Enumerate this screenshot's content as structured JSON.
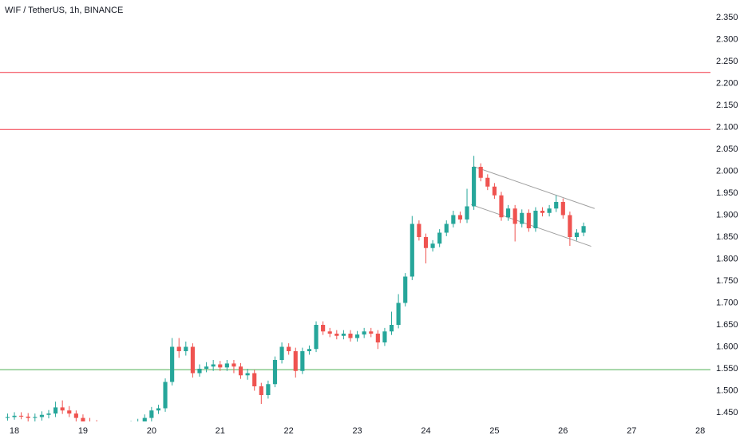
{
  "chart_data": {
    "type": "candlestick",
    "title": "WIF / TetherUS, 1h, BINANCE",
    "up_color": "#26a69a",
    "down_color": "#ef5350",
    "xlim": [
      17.79,
      28.15
    ],
    "xticks": [
      18,
      19,
      20,
      21,
      22,
      23,
      24,
      25,
      26,
      27,
      28
    ],
    "ylim": [
      1.43,
      2.39
    ],
    "yticks": [
      {
        "value": 2.35,
        "label": "2.350"
      },
      {
        "value": 2.3,
        "label": "2.300"
      },
      {
        "value": 2.25,
        "label": "2.250"
      },
      {
        "value": 2.2,
        "label": "2.200"
      },
      {
        "value": 2.15,
        "label": "2.150"
      },
      {
        "value": 2.1,
        "label": "2.100"
      },
      {
        "value": 2.05,
        "label": "2.050"
      },
      {
        "value": 2.0,
        "label": "2.000"
      },
      {
        "value": 1.95,
        "label": "1.950"
      },
      {
        "value": 1.9,
        "label": "1.900"
      },
      {
        "value": 1.85,
        "label": "1.850"
      },
      {
        "value": 1.8,
        "label": "1.800"
      },
      {
        "value": 1.75,
        "label": "1.750"
      },
      {
        "value": 1.7,
        "label": "1.700"
      },
      {
        "value": 1.65,
        "label": "1.650"
      },
      {
        "value": 1.6,
        "label": "1.600"
      },
      {
        "value": 1.55,
        "label": "1.550"
      },
      {
        "value": 1.5,
        "label": "1.500"
      },
      {
        "value": 1.45,
        "label": "1.450"
      }
    ],
    "x": [
      17.9,
      18.0,
      18.1,
      18.2,
      18.3,
      18.4,
      18.5,
      18.6,
      18.7,
      18.8,
      18.9,
      19.0,
      19.1,
      19.2,
      19.3,
      19.4,
      19.5,
      19.6,
      19.7,
      19.8,
      19.9,
      20.0,
      20.1,
      20.2,
      20.3,
      20.4,
      20.5,
      20.6,
      20.7,
      20.8,
      20.9,
      21.0,
      21.1,
      21.2,
      21.3,
      21.4,
      21.5,
      21.6,
      21.7,
      21.8,
      21.9,
      22.0,
      22.1,
      22.2,
      22.3,
      22.4,
      22.5,
      22.6,
      22.7,
      22.8,
      22.9,
      23.0,
      23.1,
      23.2,
      23.3,
      23.4,
      23.5,
      23.6,
      23.7,
      23.8,
      23.9,
      24.0,
      24.1,
      24.2,
      24.3,
      24.4,
      24.5,
      24.6,
      24.7,
      24.8,
      24.9,
      25.0,
      25.1,
      25.2,
      25.3,
      25.4,
      25.5,
      25.6,
      25.7,
      25.8,
      25.9,
      26.0,
      26.1,
      26.2,
      26.3
    ],
    "open": [
      1.438,
      1.44,
      1.443,
      1.441,
      1.438,
      1.44,
      1.445,
      1.448,
      1.462,
      1.455,
      1.448,
      1.438,
      1.43,
      1.425,
      1.422,
      1.42,
      1.418,
      1.421,
      1.419,
      1.423,
      1.428,
      1.438,
      1.455,
      1.46,
      1.52,
      1.6,
      1.59,
      1.6,
      1.54,
      1.55,
      1.555,
      1.56,
      1.553,
      1.562,
      1.555,
      1.535,
      1.54,
      1.51,
      1.49,
      1.515,
      1.57,
      1.6,
      1.59,
      1.545,
      1.59,
      1.595,
      1.65,
      1.635,
      1.63,
      1.625,
      1.63,
      1.62,
      1.628,
      1.635,
      1.63,
      1.61,
      1.635,
      1.65,
      1.7,
      1.76,
      1.88,
      1.85,
      1.825,
      1.835,
      1.86,
      1.88,
      1.9,
      1.89,
      1.92,
      2.01,
      1.985,
      1.965,
      1.945,
      1.895,
      1.915,
      1.88,
      1.905,
      1.87,
      1.91,
      1.905,
      1.915,
      1.93,
      1.9,
      1.85,
      1.86
    ],
    "high": [
      1.448,
      1.451,
      1.451,
      1.449,
      1.448,
      1.453,
      1.456,
      1.475,
      1.478,
      1.465,
      1.455,
      1.446,
      1.438,
      1.433,
      1.43,
      1.428,
      1.429,
      1.429,
      1.431,
      1.436,
      1.446,
      1.463,
      1.468,
      1.528,
      1.62,
      1.62,
      1.612,
      1.608,
      1.56,
      1.565,
      1.57,
      1.568,
      1.57,
      1.57,
      1.563,
      1.55,
      1.548,
      1.518,
      1.523,
      1.578,
      1.61,
      1.608,
      1.598,
      1.598,
      1.603,
      1.658,
      1.658,
      1.643,
      1.638,
      1.638,
      1.638,
      1.636,
      1.643,
      1.643,
      1.638,
      1.643,
      1.68,
      1.72,
      1.768,
      1.898,
      1.888,
      1.858,
      1.843,
      1.868,
      1.888,
      1.91,
      1.908,
      1.96,
      2.035,
      2.018,
      1.993,
      1.973,
      1.953,
      1.923,
      1.923,
      1.913,
      1.913,
      1.918,
      1.918,
      1.923,
      1.945,
      1.938,
      1.908,
      1.868,
      1.883
    ],
    "low": [
      1.432,
      1.434,
      1.435,
      1.43,
      1.43,
      1.432,
      1.437,
      1.44,
      1.447,
      1.44,
      1.43,
      1.422,
      1.417,
      1.414,
      1.412,
      1.41,
      1.41,
      1.411,
      1.411,
      1.415,
      1.42,
      1.43,
      1.447,
      1.452,
      1.512,
      1.575,
      1.58,
      1.53,
      1.532,
      1.542,
      1.545,
      1.545,
      1.545,
      1.54,
      1.527,
      1.525,
      1.5,
      1.47,
      1.482,
      1.508,
      1.562,
      1.582,
      1.53,
      1.538,
      1.582,
      1.588,
      1.627,
      1.622,
      1.617,
      1.617,
      1.612,
      1.612,
      1.62,
      1.622,
      1.595,
      1.602,
      1.627,
      1.642,
      1.692,
      1.752,
      1.842,
      1.79,
      1.817,
      1.827,
      1.852,
      1.872,
      1.882,
      1.882,
      1.912,
      1.977,
      1.957,
      1.937,
      1.887,
      1.887,
      1.84,
      1.872,
      1.862,
      1.862,
      1.897,
      1.897,
      1.907,
      1.892,
      1.83,
      1.842,
      1.852
    ],
    "close": [
      1.44,
      1.443,
      1.441,
      1.438,
      1.44,
      1.445,
      1.448,
      1.462,
      1.455,
      1.448,
      1.438,
      1.43,
      1.425,
      1.422,
      1.42,
      1.418,
      1.421,
      1.419,
      1.423,
      1.428,
      1.438,
      1.455,
      1.46,
      1.52,
      1.6,
      1.59,
      1.6,
      1.54,
      1.55,
      1.555,
      1.56,
      1.553,
      1.562,
      1.555,
      1.535,
      1.54,
      1.51,
      1.49,
      1.515,
      1.57,
      1.6,
      1.59,
      1.545,
      1.59,
      1.595,
      1.65,
      1.635,
      1.63,
      1.625,
      1.63,
      1.62,
      1.628,
      1.635,
      1.63,
      1.61,
      1.635,
      1.65,
      1.7,
      1.76,
      1.88,
      1.85,
      1.825,
      1.835,
      1.86,
      1.88,
      1.9,
      1.89,
      1.92,
      2.01,
      1.985,
      1.965,
      1.945,
      1.895,
      1.915,
      1.88,
      1.905,
      1.87,
      1.91,
      1.905,
      1.915,
      1.93,
      1.9,
      1.85,
      1.86,
      1.875
    ],
    "hlines": [
      {
        "value": 2.225,
        "color": "#f23645"
      },
      {
        "value": 2.095,
        "color": "#f23645"
      },
      {
        "value": 1.548,
        "color": "#4caf50"
      }
    ],
    "trendlines": [
      {
        "x": [
          24.69,
          26.46
        ],
        "y": [
          2.011,
          1.915
        ],
        "color": "#9e9e9e"
      },
      {
        "x": [
          24.66,
          26.41
        ],
        "y": [
          1.924,
          1.829
        ],
        "color": "#9e9e9e"
      }
    ]
  }
}
